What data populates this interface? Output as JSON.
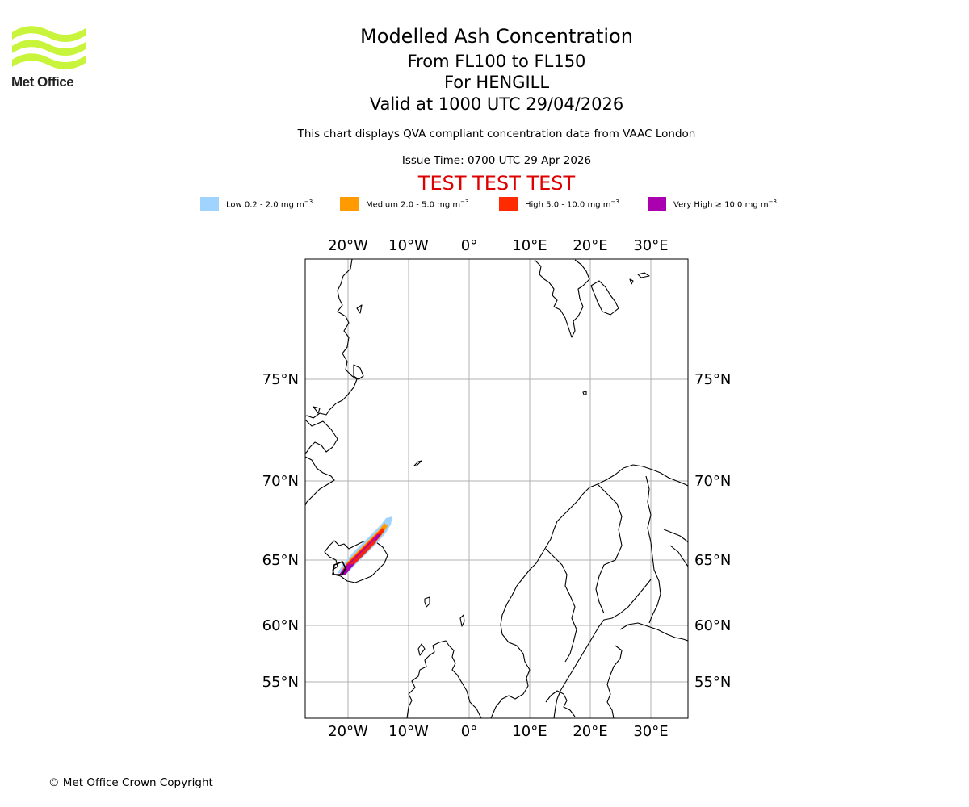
{
  "header": {
    "logo_text": "Met Office",
    "title": "Modelled Ash Concentration",
    "levels": "From FL100 to FL150",
    "volcano": "For HENGILL",
    "valid": "Valid at 1000 UTC 29/04/2026",
    "description": "This chart displays QVA compliant concentration data from VAAC London",
    "issue": "Issue Time: 0700 UTC 29 Apr 2026",
    "test_banner": "TEST TEST TEST"
  },
  "colors": {
    "logo": "#c8f53c",
    "test_banner": "#dd0000",
    "grid": "#b0b0b0"
  },
  "legend": [
    {
      "label": "Low 0.2 - 2.0 mg m",
      "unit_sup": "−3",
      "color": "#a0d4ff"
    },
    {
      "label": "Medium 2.0 - 5.0 mg m",
      "unit_sup": "−3",
      "color": "#ff9a00"
    },
    {
      "label": "High 5.0 - 10.0 mg m",
      "unit_sup": "−3",
      "color": "#ff2a00"
    },
    {
      "label": "Very High ≥ 10.0 mg m",
      "unit_sup": "−3",
      "color": "#aa00b0"
    }
  ],
  "map": {
    "lon_labels": [
      "20°W",
      "10°W",
      "0°",
      "10°E",
      "20°E",
      "30°E"
    ],
    "lat_labels": [
      "75°N",
      "70°N",
      "65°N",
      "60°N",
      "55°N"
    ]
  },
  "footer": {
    "copyright": "© Met Office Crown Copyright"
  }
}
